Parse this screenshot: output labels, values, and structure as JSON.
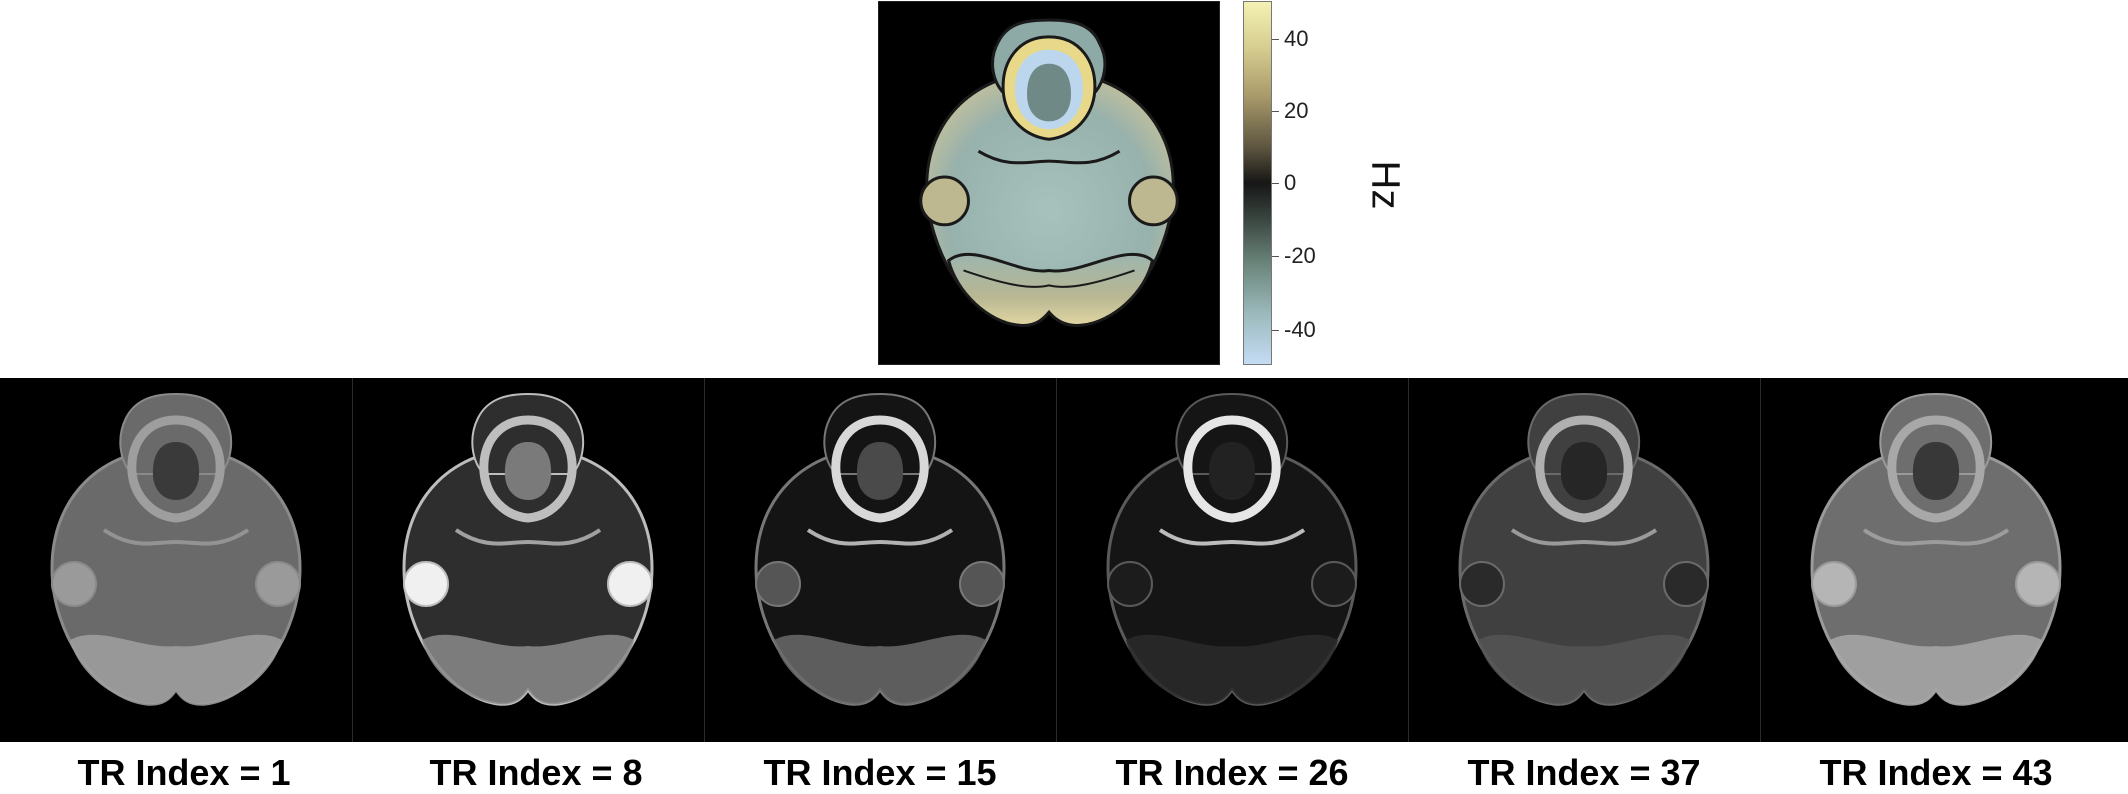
{
  "colorbar": {
    "ticks": [
      "40",
      "20",
      "0",
      "-20",
      "-40"
    ],
    "unit": "Hz"
  },
  "frames": [
    {
      "label": "TR Index = 1"
    },
    {
      "label": "TR Index = 8"
    },
    {
      "label": "TR Index = 15"
    },
    {
      "label": "TR Index = 26"
    },
    {
      "label": "TR Index = 37"
    },
    {
      "label": "TR Index = 43"
    }
  ]
}
